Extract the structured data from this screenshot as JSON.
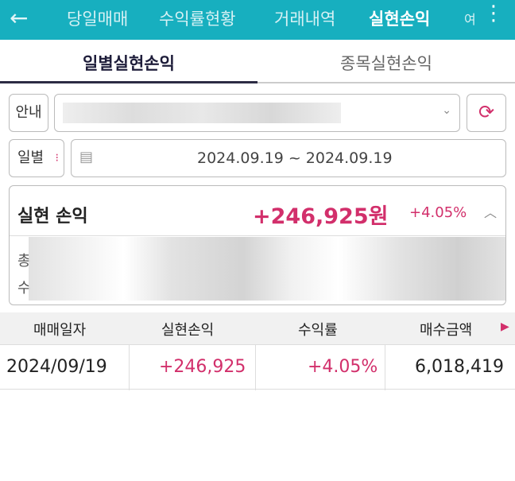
{
  "header": {
    "back_icon": "arrow-left-icon",
    "tabs": [
      "당일매매",
      "수익률현황",
      "거래내역",
      "실현손익",
      "여"
    ],
    "active": "실현손익",
    "more_icon": "more-vertical-icon",
    "color": "#17afbf"
  },
  "subtabs": [
    "일별실현손익",
    "종목실현손익"
  ],
  "account": {
    "label": "안내",
    "refresh_icon": "refresh-icon",
    "dropdown_icon": "chevron-down-icon"
  },
  "period": {
    "label": "일별",
    "range": "2024.09.19 ~ 2024.09.19",
    "calendar_icon": "calendar-icon"
  },
  "summary": {
    "title": "실현 손익",
    "amount": "+246,925원",
    "rate": "+4.05%",
    "collapse_icon": "chevron-up-icon",
    "row_labels": [
      "총",
      "수"
    ]
  },
  "table": {
    "headers": [
      "매매일자",
      "실현손익",
      "수익률",
      "매수금액"
    ],
    "rows": [
      {
        "date": "2024/09/19",
        "pnl": "+246,925",
        "rate": "+4.05%",
        "buy": "6,018,419"
      }
    ]
  },
  "colors": {
    "positive": "#d22f6b"
  }
}
